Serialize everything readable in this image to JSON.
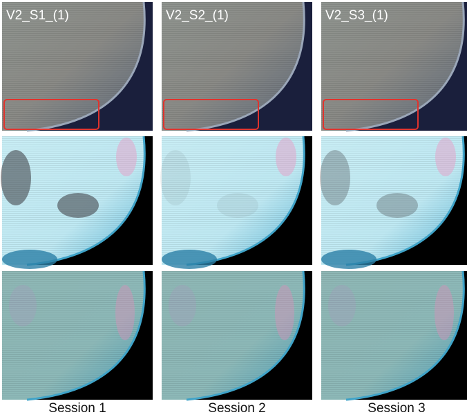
{
  "panels": {
    "top_labels": [
      "V2_S1_(1)",
      "V2_S2_(1)",
      "V2_S3_(1)"
    ],
    "session_labels": [
      "Session 1",
      "Session 2",
      "Session 3"
    ]
  }
}
